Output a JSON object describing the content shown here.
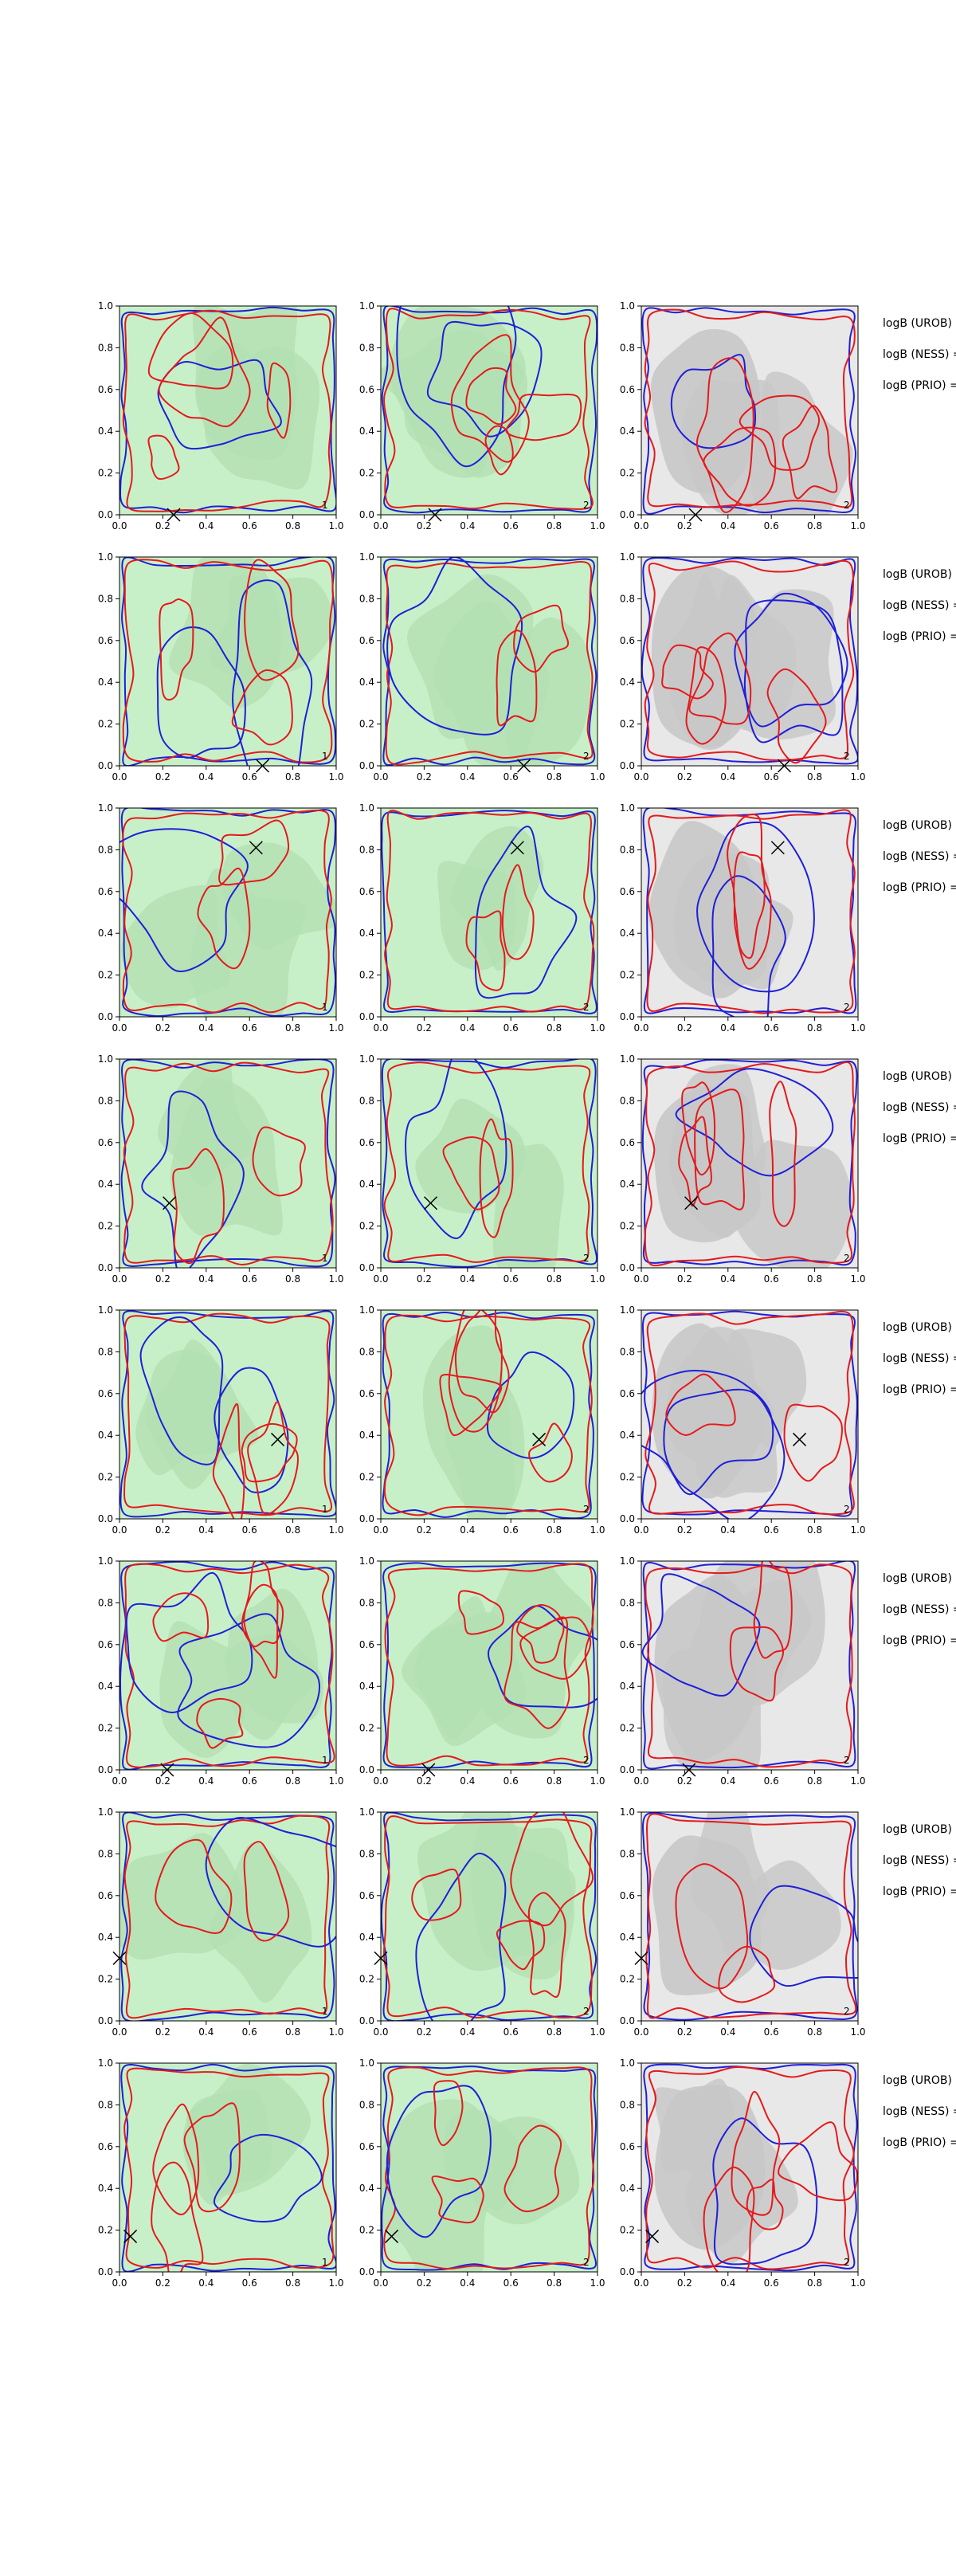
{
  "figure": {
    "rows": 8,
    "cols": 3,
    "xlim": [
      0.0,
      1.0
    ],
    "ylim": [
      0.0,
      1.0
    ],
    "tick_labels": [
      "0.0",
      "0.2",
      "0.4",
      "0.6",
      "0.8",
      "1.0"
    ],
    "side_labels": [
      "logB (UROB) =",
      "logB (NESS) =",
      "logB (PRIO) ="
    ],
    "colors": {
      "red_contour": "#e41a1c",
      "blue_contour": "#1f1fd8",
      "green_fill": "#c8f0c8",
      "green_dark": "#b4e0b4",
      "grey_fill": "#e8e8e8",
      "grey_dark": "#c8c8c8",
      "marker": "#000000"
    }
  },
  "chart_data": [
    {
      "type": "contour",
      "row": 1,
      "markers": [
        {
          "x": 0.25,
          "y": 0.0
        }
      ],
      "panel_labels": [
        "1",
        "2",
        "2"
      ],
      "side_labels": [
        "logB (UROB) =",
        "logB (NESS) =",
        "logB (PRIO) ="
      ]
    },
    {
      "type": "contour",
      "row": 2,
      "markers": [
        {
          "x": 0.66,
          "y": 0.0
        }
      ],
      "panel_labels": [
        "1",
        "2",
        "2"
      ],
      "side_labels": [
        "logB (UROB) =",
        "logB (NESS) =",
        "logB (PRIO) ="
      ]
    },
    {
      "type": "contour",
      "row": 3,
      "markers": [
        {
          "x": 0.63,
          "y": 0.81
        }
      ],
      "panel_labels": [
        "1",
        "2",
        "2"
      ],
      "side_labels": [
        "logB (UROB) =",
        "logB (NESS) =",
        "logB (PRIO) ="
      ]
    },
    {
      "type": "contour",
      "row": 4,
      "markers": [
        {
          "x": 0.23,
          "y": 0.31
        }
      ],
      "panel_labels": [
        "1",
        "2",
        "2"
      ],
      "side_labels": [
        "logB (UROB) =",
        "logB (NESS) =",
        "logB (PRIO) ="
      ]
    },
    {
      "type": "contour",
      "row": 5,
      "markers": [
        {
          "x": 0.73,
          "y": 0.38
        }
      ],
      "panel_labels": [
        "1",
        "2",
        "2"
      ],
      "side_labels": [
        "logB (UROB) =",
        "logB (NESS) =",
        "logB (PRIO) ="
      ]
    },
    {
      "type": "contour",
      "row": 6,
      "markers": [
        {
          "x": 0.22,
          "y": 0.0
        }
      ],
      "panel_labels": [
        "1",
        "2",
        "2"
      ],
      "side_labels": [
        "logB (UROB) =",
        "logB (NESS) =",
        "logB (PRIO) ="
      ]
    },
    {
      "type": "contour",
      "row": 7,
      "markers": [
        {
          "x": 0.0,
          "y": 0.3
        }
      ],
      "panel_labels": [
        "1",
        "2",
        "2"
      ],
      "side_labels": [
        "logB (UROB) =",
        "logB (NESS) =",
        "logB (PRIO) ="
      ]
    },
    {
      "type": "contour",
      "row": 8,
      "markers": [
        {
          "x": 0.05,
          "y": 0.17
        }
      ],
      "panel_labels": [
        "1",
        "2",
        "2"
      ],
      "side_labels": [
        "logB (UROB) =",
        "logB (NESS) =",
        "logB (PRIO) ="
      ]
    }
  ]
}
